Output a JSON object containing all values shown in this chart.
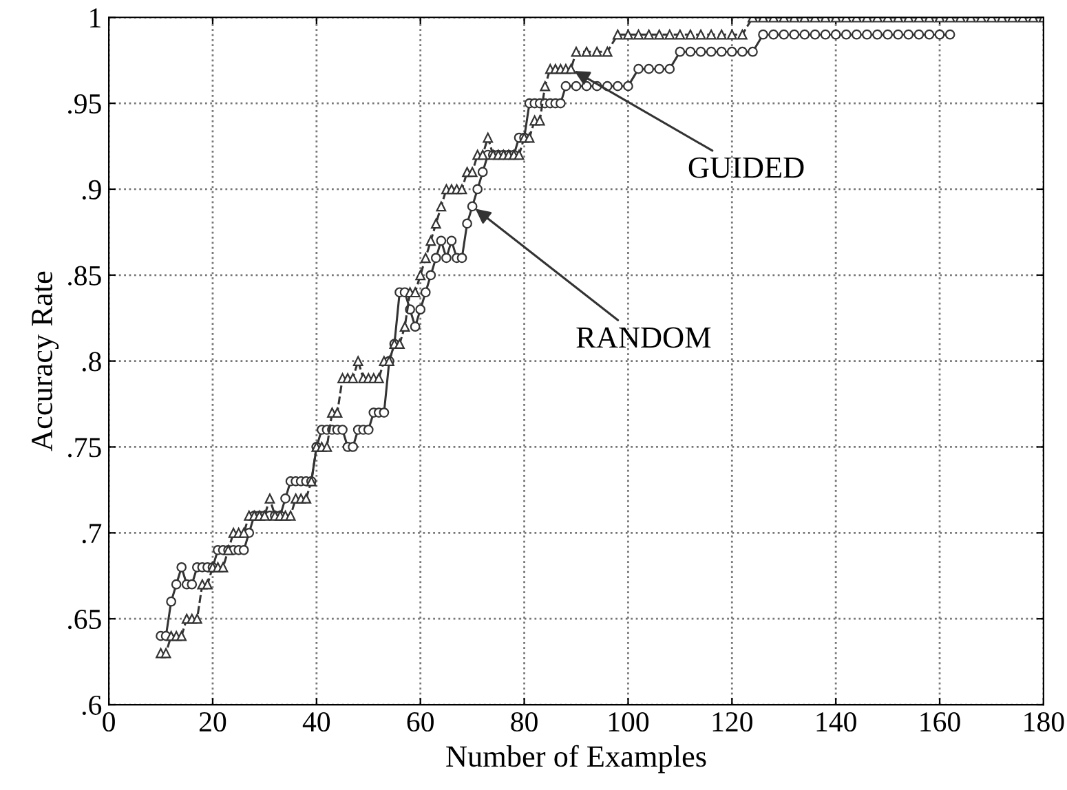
{
  "chart_data": {
    "type": "line",
    "xlabel": "Number of Examples",
    "ylabel": "Accuracy Rate",
    "xlim": [
      0,
      180
    ],
    "xticks": [
      0,
      20,
      40,
      60,
      80,
      100,
      120,
      140,
      160,
      180
    ],
    "ylim": [
      0.6,
      1
    ],
    "yticks": [
      {
        "value": 0.6,
        "label": ".6"
      },
      {
        "value": 0.65,
        "label": ".65"
      },
      {
        "value": 0.7,
        "label": ".7"
      },
      {
        "value": 0.75,
        "label": ".75"
      },
      {
        "value": 0.8,
        "label": ".8"
      },
      {
        "value": 0.85,
        "label": ".85"
      },
      {
        "value": 0.9,
        "label": ".9"
      },
      {
        "value": 0.95,
        "label": ".95"
      },
      {
        "value": 1,
        "label": "1"
      }
    ],
    "grid": true,
    "series": [
      {
        "color": "#333333",
        "marker": "circle",
        "line_style": "solid",
        "x": [
          10,
          11,
          12,
          13,
          14,
          15,
          16,
          17,
          18,
          19,
          20,
          21,
          22,
          23,
          24,
          25,
          26,
          27,
          28,
          29,
          30,
          31,
          32,
          33,
          34,
          35,
          36,
          37,
          38,
          39,
          40,
          41,
          42,
          43,
          44,
          45,
          46,
          47,
          48,
          49,
          50,
          51,
          52,
          53,
          54,
          55,
          56,
          57,
          58,
          59,
          60,
          61,
          62,
          63,
          64,
          65,
          66,
          67,
          68,
          69,
          70,
          71,
          72,
          73,
          74,
          75,
          76,
          77,
          78,
          79,
          80,
          81,
          82,
          83,
          84,
          85,
          86,
          87,
          88,
          90,
          92,
          94,
          96,
          98,
          100,
          102,
          104,
          106,
          108,
          110,
          112,
          114,
          116,
          118,
          120,
          122,
          124,
          126,
          128,
          130,
          132,
          134,
          136,
          138,
          140,
          142,
          144,
          146,
          148,
          150,
          152,
          154,
          156,
          158,
          160,
          162
        ],
        "values": [
          0.64,
          0.64,
          0.66,
          0.67,
          0.68,
          0.67,
          0.67,
          0.68,
          0.68,
          0.68,
          0.68,
          0.69,
          0.69,
          0.69,
          0.69,
          0.69,
          0.69,
          0.7,
          0.71,
          0.71,
          0.71,
          0.71,
          0.71,
          0.71,
          0.72,
          0.73,
          0.73,
          0.73,
          0.73,
          0.73,
          0.75,
          0.76,
          0.76,
          0.76,
          0.76,
          0.76,
          0.75,
          0.75,
          0.76,
          0.76,
          0.76,
          0.77,
          0.77,
          0.77,
          0.8,
          0.81,
          0.84,
          0.84,
          0.83,
          0.82,
          0.83,
          0.84,
          0.85,
          0.86,
          0.87,
          0.86,
          0.87,
          0.86,
          0.86,
          0.88,
          0.89,
          0.9,
          0.91,
          0.92,
          0.92,
          0.92,
          0.92,
          0.92,
          0.92,
          0.93,
          0.93,
          0.95,
          0.95,
          0.95,
          0.95,
          0.95,
          0.95,
          0.95,
          0.96,
          0.96,
          0.96,
          0.96,
          0.96,
          0.96,
          0.96,
          0.97,
          0.97,
          0.97,
          0.97,
          0.98,
          0.98,
          0.98,
          0.98,
          0.98,
          0.98,
          0.98,
          0.98,
          0.99,
          0.99,
          0.99,
          0.99,
          0.99,
          0.99,
          0.99,
          0.99,
          0.99,
          0.99,
          0.99,
          0.99,
          0.99,
          0.99,
          0.99,
          0.99,
          0.99,
          0.99,
          0.99
        ]
      },
      {
        "color": "#333333",
        "marker": "triangle",
        "line_style": "dashed",
        "x": [
          10,
          11,
          12,
          13,
          14,
          15,
          16,
          17,
          18,
          19,
          20,
          21,
          22,
          23,
          24,
          25,
          26,
          27,
          28,
          29,
          30,
          31,
          32,
          33,
          34,
          35,
          36,
          37,
          38,
          39,
          40,
          41,
          42,
          43,
          44,
          45,
          46,
          47,
          48,
          49,
          50,
          51,
          52,
          53,
          54,
          55,
          56,
          57,
          58,
          59,
          60,
          61,
          62,
          63,
          64,
          65,
          66,
          67,
          68,
          69,
          70,
          71,
          72,
          73,
          74,
          75,
          76,
          77,
          78,
          79,
          80,
          81,
          82,
          83,
          84,
          85,
          86,
          87,
          88,
          89,
          90,
          92,
          94,
          96,
          98,
          100,
          102,
          104,
          106,
          108,
          110,
          112,
          114,
          116,
          118,
          120,
          122,
          124,
          126,
          128,
          130,
          132,
          134,
          136,
          138,
          140,
          142,
          144,
          146,
          148,
          150,
          152,
          154,
          156,
          158,
          160,
          162,
          164,
          166,
          168,
          170,
          172,
          174,
          176,
          178,
          180
        ],
        "values": [
          0.63,
          0.63,
          0.64,
          0.64,
          0.64,
          0.65,
          0.65,
          0.65,
          0.67,
          0.67,
          0.68,
          0.68,
          0.68,
          0.69,
          0.7,
          0.7,
          0.7,
          0.71,
          0.71,
          0.71,
          0.71,
          0.72,
          0.71,
          0.71,
          0.71,
          0.71,
          0.72,
          0.72,
          0.72,
          0.73,
          0.75,
          0.75,
          0.75,
          0.77,
          0.77,
          0.79,
          0.79,
          0.79,
          0.8,
          0.79,
          0.79,
          0.79,
          0.79,
          0.8,
          0.8,
          0.81,
          0.81,
          0.82,
          0.84,
          0.84,
          0.85,
          0.86,
          0.87,
          0.88,
          0.89,
          0.9,
          0.9,
          0.9,
          0.9,
          0.91,
          0.91,
          0.92,
          0.92,
          0.93,
          0.92,
          0.92,
          0.92,
          0.92,
          0.92,
          0.92,
          0.93,
          0.93,
          0.94,
          0.94,
          0.96,
          0.97,
          0.97,
          0.97,
          0.97,
          0.97,
          0.98,
          0.98,
          0.98,
          0.98,
          0.99,
          0.99,
          0.99,
          0.99,
          0.99,
          0.99,
          0.99,
          0.99,
          0.99,
          0.99,
          0.99,
          0.99,
          0.99,
          1,
          1,
          1,
          1,
          1,
          1,
          1,
          1,
          1,
          1,
          1,
          1,
          1,
          1,
          1,
          1,
          1,
          1,
          1,
          1,
          1,
          1,
          1,
          1,
          1,
          1,
          1,
          1,
          1
        ]
      }
    ],
    "annotations": [
      {
        "text": "GUIDED",
        "x": 89,
        "y": 0.97
      },
      {
        "text": "RANDOM",
        "x": 70,
        "y": 0.89
      }
    ]
  }
}
